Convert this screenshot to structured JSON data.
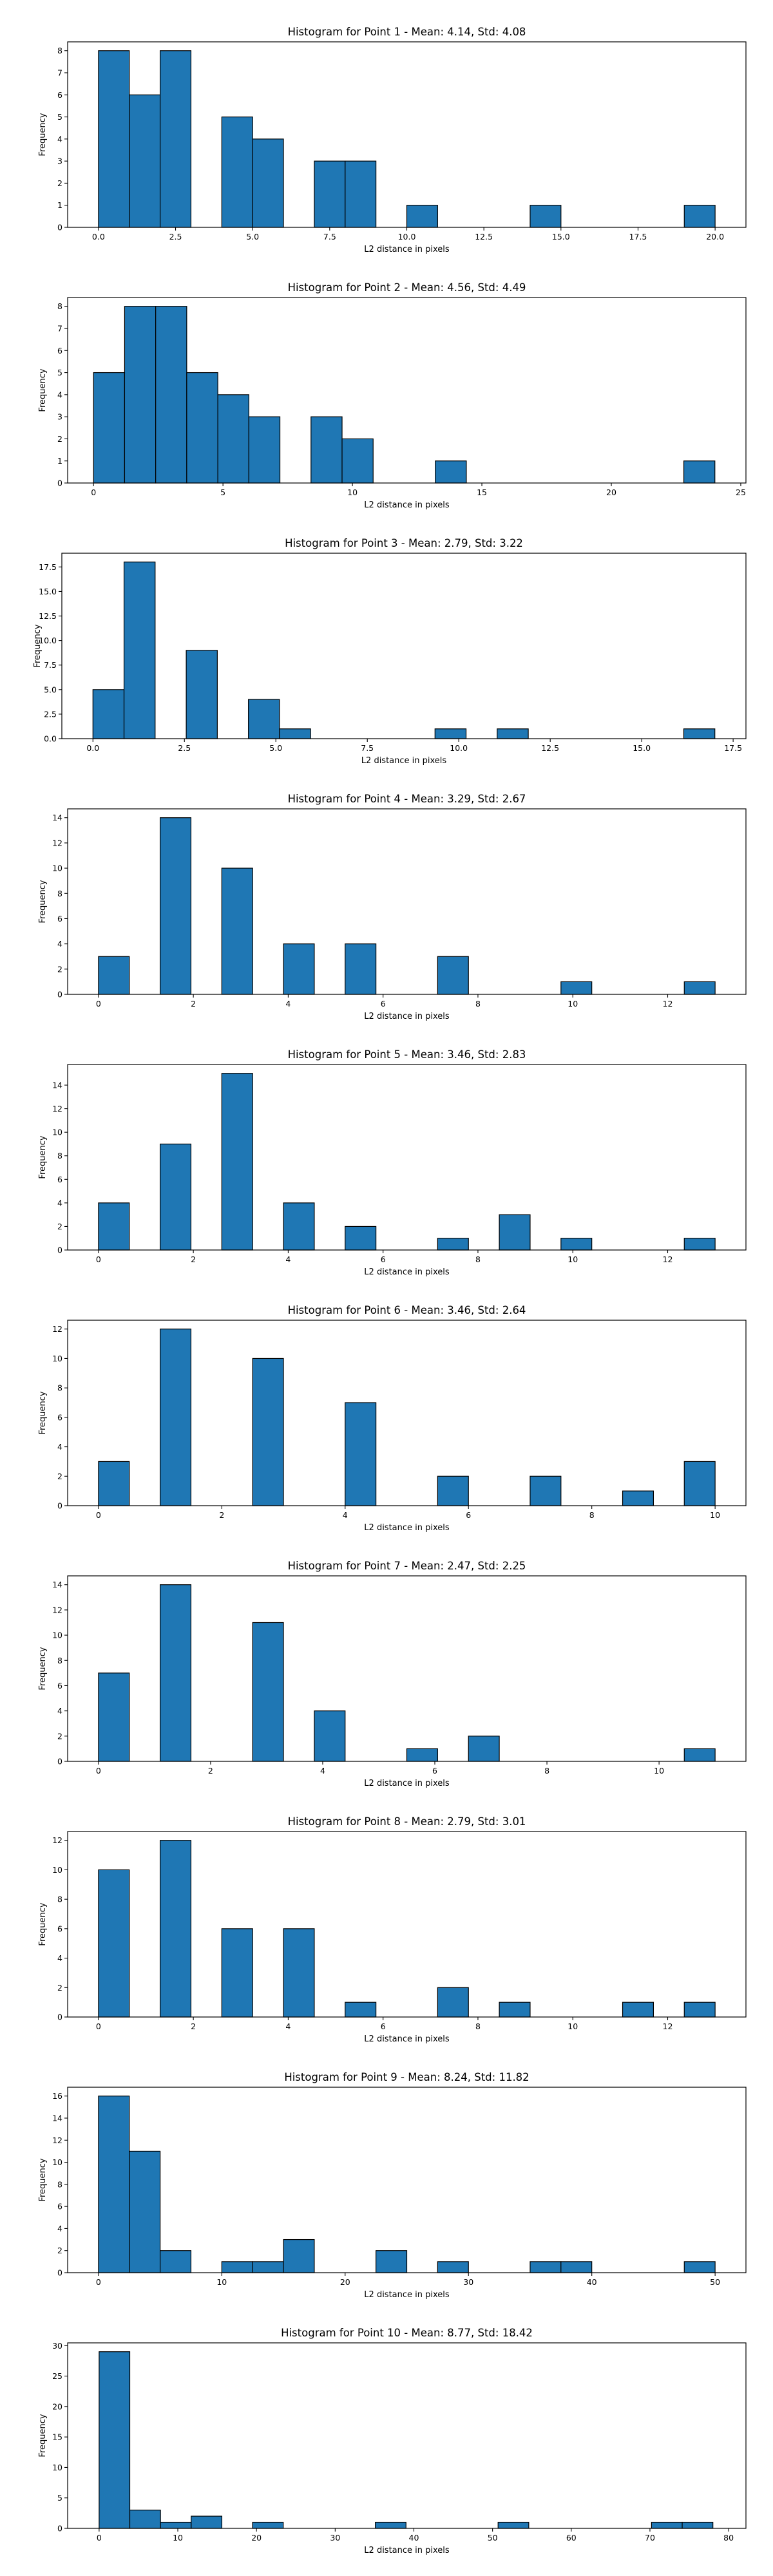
{
  "chart_data": [
    {
      "type": "bar",
      "title": "Histogram for Point 1 - Mean: 4.14, Std: 4.08",
      "xlabel": "L2 distance in pixels",
      "ylabel": "Frequency",
      "xlim": [
        -1,
        21
      ],
      "ylim": [
        0,
        8.4
      ],
      "xticks": [
        0,
        2.5,
        5,
        7.5,
        10,
        12.5,
        15,
        17.5,
        20
      ],
      "xtick_labels": [
        "0.0",
        "2.5",
        "5.0",
        "7.5",
        "10.0",
        "12.5",
        "15.0",
        "17.5",
        "20.0"
      ],
      "yticks": [
        0,
        1,
        2,
        3,
        4,
        5,
        6,
        7,
        8
      ],
      "bins": [
        [
          0,
          1,
          8
        ],
        [
          1,
          2,
          6
        ],
        [
          2,
          3,
          8
        ],
        [
          4,
          5,
          5
        ],
        [
          5,
          6,
          4
        ],
        [
          7,
          8,
          3
        ],
        [
          8,
          9,
          3
        ],
        [
          10,
          11,
          1
        ],
        [
          14,
          15,
          1
        ],
        [
          19,
          20,
          1
        ]
      ]
    },
    {
      "type": "bar",
      "title": "Histogram for Point 2 - Mean: 4.56, Std: 4.49",
      "xlabel": "L2 distance in pixels",
      "ylabel": "Frequency",
      "xlim": [
        -1,
        25.2
      ],
      "ylim": [
        0,
        8.4
      ],
      "xticks": [
        0,
        5,
        10,
        15,
        20,
        25
      ],
      "xtick_labels": [
        "0",
        "5",
        "10",
        "15",
        "20",
        "25"
      ],
      "yticks": [
        0,
        1,
        2,
        3,
        4,
        5,
        6,
        7,
        8
      ],
      "bins": [
        [
          0,
          1.2,
          5
        ],
        [
          1.2,
          2.4,
          8
        ],
        [
          2.4,
          3.6,
          8
        ],
        [
          3.6,
          4.8,
          5
        ],
        [
          4.8,
          6,
          4
        ],
        [
          6,
          7.2,
          3
        ],
        [
          8.4,
          9.6,
          3
        ],
        [
          9.6,
          10.8,
          2
        ],
        [
          13.2,
          14.4,
          1
        ],
        [
          22.8,
          24,
          1
        ]
      ]
    },
    {
      "type": "bar",
      "title": "Histogram for Point 3 - Mean: 2.79, Std: 3.22",
      "xlabel": "L2 distance in pixels",
      "ylabel": "Frequency",
      "xlim": [
        -0.85,
        17.85
      ],
      "ylim": [
        0,
        18.9
      ],
      "xticks": [
        0,
        2.5,
        5,
        7.5,
        10,
        12.5,
        15,
        17.5
      ],
      "xtick_labels": [
        "0.0",
        "2.5",
        "5.0",
        "7.5",
        "10.0",
        "12.5",
        "15.0",
        "17.5"
      ],
      "yticks": [
        0,
        2.5,
        5,
        7.5,
        10,
        12.5,
        15,
        17.5
      ],
      "ytick_labels": [
        "0.0",
        "2.5",
        "5.0",
        "7.5",
        "10.0",
        "12.5",
        "15.0",
        "17.5"
      ],
      "bins": [
        [
          0,
          0.85,
          5
        ],
        [
          0.85,
          1.7,
          18
        ],
        [
          2.55,
          3.4,
          9
        ],
        [
          4.25,
          5.1,
          4
        ],
        [
          5.1,
          5.95,
          1
        ],
        [
          9.35,
          10.2,
          1
        ],
        [
          11.05,
          11.9,
          1
        ],
        [
          16.15,
          17,
          1
        ]
      ]
    },
    {
      "type": "bar",
      "title": "Histogram for Point 4 - Mean: 3.29, Std: 2.67",
      "xlabel": "L2 distance in pixels",
      "ylabel": "Frequency",
      "xlim": [
        -0.65,
        13.65
      ],
      "ylim": [
        0,
        14.7
      ],
      "xticks": [
        0,
        2,
        4,
        6,
        8,
        10,
        12
      ],
      "xtick_labels": [
        "0",
        "2",
        "4",
        "6",
        "8",
        "10",
        "12"
      ],
      "yticks": [
        0,
        2,
        4,
        6,
        8,
        10,
        12,
        14
      ],
      "bins": [
        [
          0,
          0.65,
          3
        ],
        [
          1.3,
          1.95,
          14
        ],
        [
          2.6,
          3.25,
          10
        ],
        [
          3.9,
          4.55,
          4
        ],
        [
          5.2,
          5.85,
          4
        ],
        [
          7.15,
          7.8,
          3
        ],
        [
          9.75,
          10.4,
          1
        ],
        [
          12.35,
          13,
          1
        ]
      ]
    },
    {
      "type": "bar",
      "title": "Histogram for Point 5 - Mean: 3.46, Std: 2.83",
      "xlabel": "L2 distance in pixels",
      "ylabel": "Frequency",
      "xlim": [
        -0.65,
        13.65
      ],
      "ylim": [
        0,
        15.75
      ],
      "xticks": [
        0,
        2,
        4,
        6,
        8,
        10,
        12
      ],
      "xtick_labels": [
        "0",
        "2",
        "4",
        "6",
        "8",
        "10",
        "12"
      ],
      "yticks": [
        0,
        2,
        4,
        6,
        8,
        10,
        12,
        14
      ],
      "bins": [
        [
          0,
          0.65,
          4
        ],
        [
          1.3,
          1.95,
          9
        ],
        [
          2.6,
          3.25,
          15
        ],
        [
          3.9,
          4.55,
          4
        ],
        [
          5.2,
          5.85,
          2
        ],
        [
          7.15,
          7.8,
          1
        ],
        [
          8.45,
          9.1,
          3
        ],
        [
          9.75,
          10.4,
          1
        ],
        [
          12.35,
          13,
          1
        ]
      ]
    },
    {
      "type": "bar",
      "title": "Histogram for Point 6 - Mean: 3.46, Std: 2.64",
      "xlabel": "L2 distance in pixels",
      "ylabel": "Frequency",
      "xlim": [
        -0.5,
        10.5
      ],
      "ylim": [
        0,
        12.6
      ],
      "xticks": [
        0,
        2,
        4,
        6,
        8,
        10
      ],
      "xtick_labels": [
        "0",
        "2",
        "4",
        "6",
        "8",
        "10"
      ],
      "yticks": [
        0,
        2,
        4,
        6,
        8,
        10,
        12
      ],
      "bins": [
        [
          0,
          0.5,
          3
        ],
        [
          1,
          1.5,
          12
        ],
        [
          2.5,
          3,
          10
        ],
        [
          4,
          4.5,
          7
        ],
        [
          5.5,
          6,
          2
        ],
        [
          7,
          7.5,
          2
        ],
        [
          8.5,
          9,
          1
        ],
        [
          9.5,
          10,
          3
        ]
      ]
    },
    {
      "type": "bar",
      "title": "Histogram for Point 7 - Mean: 2.47, Std: 2.25",
      "xlabel": "L2 distance in pixels",
      "ylabel": "Frequency",
      "xlim": [
        -0.55,
        11.55
      ],
      "ylim": [
        0,
        14.7
      ],
      "xticks": [
        0,
        2,
        4,
        6,
        8,
        10
      ],
      "xtick_labels": [
        "0",
        "2",
        "4",
        "6",
        "8",
        "10"
      ],
      "yticks": [
        0,
        2,
        4,
        6,
        8,
        10,
        12,
        14
      ],
      "bins": [
        [
          0,
          0.55,
          7
        ],
        [
          1.1,
          1.65,
          14
        ],
        [
          2.75,
          3.3,
          11
        ],
        [
          3.85,
          4.4,
          4
        ],
        [
          5.5,
          6.05,
          1
        ],
        [
          6.6,
          7.15,
          2
        ],
        [
          10.45,
          11,
          1
        ]
      ]
    },
    {
      "type": "bar",
      "title": "Histogram for Point 8 - Mean: 2.79, Std: 3.01",
      "xlabel": "L2 distance in pixels",
      "ylabel": "Frequency",
      "xlim": [
        -0.65,
        13.65
      ],
      "ylim": [
        0,
        12.6
      ],
      "xticks": [
        0,
        2,
        4,
        6,
        8,
        10,
        12
      ],
      "xtick_labels": [
        "0",
        "2",
        "4",
        "6",
        "8",
        "10",
        "12"
      ],
      "yticks": [
        0,
        2,
        4,
        6,
        8,
        10,
        12
      ],
      "bins": [
        [
          0,
          0.65,
          10
        ],
        [
          1.3,
          1.95,
          12
        ],
        [
          2.6,
          3.25,
          6
        ],
        [
          3.9,
          4.55,
          6
        ],
        [
          5.2,
          5.85,
          1
        ],
        [
          7.15,
          7.8,
          2
        ],
        [
          8.45,
          9.1,
          1
        ],
        [
          11.05,
          11.7,
          1
        ],
        [
          12.35,
          13,
          1
        ]
      ]
    },
    {
      "type": "bar",
      "title": "Histogram for Point 9 - Mean: 8.24, Std: 11.82",
      "xlabel": "L2 distance in pixels",
      "ylabel": "Frequency",
      "xlim": [
        -2.5,
        52.5
      ],
      "ylim": [
        0,
        16.8
      ],
      "xticks": [
        0,
        10,
        20,
        30,
        40,
        50
      ],
      "xtick_labels": [
        "0",
        "10",
        "20",
        "30",
        "40",
        "50"
      ],
      "yticks": [
        0,
        2,
        4,
        6,
        8,
        10,
        12,
        14,
        16
      ],
      "bins": [
        [
          0,
          2.5,
          16
        ],
        [
          2.5,
          5,
          11
        ],
        [
          5,
          7.5,
          2
        ],
        [
          10,
          12.5,
          1
        ],
        [
          12.5,
          15,
          1
        ],
        [
          15,
          17.5,
          3
        ],
        [
          22.5,
          25,
          2
        ],
        [
          27.5,
          30,
          1
        ],
        [
          35,
          37.5,
          1
        ],
        [
          37.5,
          40,
          1
        ],
        [
          47.5,
          50,
          1
        ]
      ]
    },
    {
      "type": "bar",
      "title": "Histogram for Point 10 - Mean: 8.77, Std: 18.42",
      "xlabel": "L2 distance in pixels",
      "ylabel": "Frequency",
      "xlim": [
        -4,
        82.2
      ],
      "ylim": [
        0,
        30.45
      ],
      "xticks": [
        0,
        10,
        20,
        30,
        40,
        50,
        60,
        70,
        80
      ],
      "xtick_labels": [
        "0",
        "10",
        "20",
        "30",
        "40",
        "50",
        "60",
        "70",
        "80"
      ],
      "yticks": [
        0,
        5,
        10,
        15,
        20,
        25,
        30
      ],
      "bins": [
        [
          0,
          3.9,
          29
        ],
        [
          3.9,
          7.8,
          3
        ],
        [
          7.8,
          11.7,
          1
        ],
        [
          11.7,
          15.6,
          2
        ],
        [
          19.5,
          23.4,
          1
        ],
        [
          35.1,
          39,
          1
        ],
        [
          50.7,
          54.6,
          1
        ],
        [
          70.2,
          74.1,
          1
        ],
        [
          74.1,
          78,
          1
        ]
      ]
    }
  ]
}
